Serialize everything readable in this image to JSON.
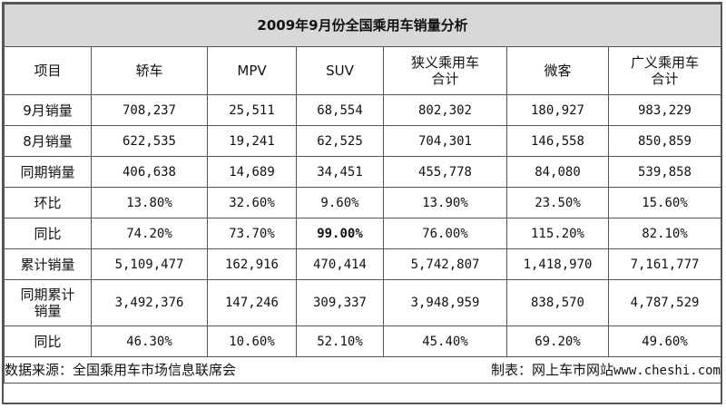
{
  "title": "2009年9月份全国乘用车销量分析",
  "columns": [
    "项目",
    "轿车",
    "MPV",
    "SUV",
    "狭义乘用车\n合计",
    "微客",
    "广义乘用车\n合计"
  ],
  "column_lines": [
    [
      "项目"
    ],
    [
      "轿车"
    ],
    [
      "MPV"
    ],
    [
      "SUV"
    ],
    [
      "狭义乘用车",
      "合计"
    ],
    [
      "微客"
    ],
    [
      "广义乘用车",
      "合计"
    ]
  ],
  "rows": [
    {
      "label": [
        "9月销量"
      ],
      "values": [
        "708,237",
        "25,511",
        "68,554",
        "802,302",
        "180,927",
        "983,229"
      ]
    },
    {
      "label": [
        "8月销量"
      ],
      "values": [
        "622,535",
        "19,241",
        "62,525",
        "704,301",
        "146,558",
        "850,859"
      ]
    },
    {
      "label": [
        "同期销量"
      ],
      "values": [
        "406,638",
        "14,689",
        "34,451",
        "455,778",
        "84,080",
        "539,858"
      ]
    },
    {
      "label": [
        "环比"
      ],
      "values": [
        "13.80%",
        "32.60%",
        "9.60%",
        "13.90%",
        "23.50%",
        "15.60%"
      ]
    },
    {
      "label": [
        "同比"
      ],
      "values": [
        "74.20%",
        "73.70%",
        "99.00%",
        "76.00%",
        "115.20%",
        "82.10%"
      ]
    },
    {
      "label": [
        "累计销量"
      ],
      "values": [
        "5,109,477",
        "162,916",
        "470,414",
        "5,742,807",
        "1,418,970",
        "7,161,777"
      ]
    },
    {
      "label": [
        "同期累计",
        "销量"
      ],
      "values": [
        "3,492,376",
        "147,246",
        "309,337",
        "3,948,959",
        "838,570",
        "4,787,529"
      ]
    },
    {
      "label": [
        "同比"
      ],
      "values": [
        "46.30%",
        "10.60%",
        "52.10%",
        "45.40%",
        "69.20%",
        "49.60%"
      ]
    }
  ],
  "footer": {
    "source": "数据来源：全国乘用车市场信息联席会",
    "maker": "制表：网上车市网站",
    "url": "www.cheshi.com"
  }
}
